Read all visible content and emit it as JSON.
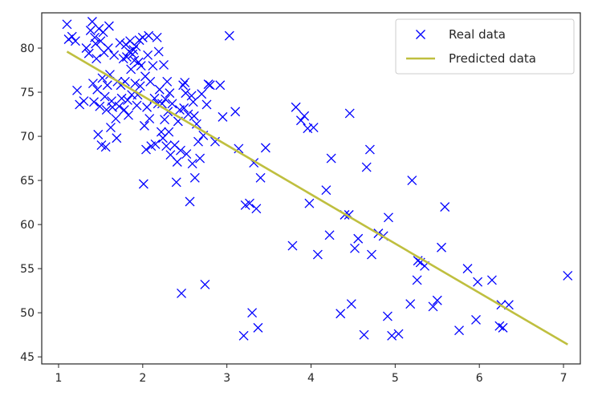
{
  "chart_data": {
    "type": "scatter",
    "title": "",
    "xlabel": "",
    "ylabel": "",
    "xlim": [
      0.8,
      7.2
    ],
    "ylim": [
      44.2,
      84.0
    ],
    "x_ticks": [
      1,
      2,
      3,
      4,
      5,
      6,
      7
    ],
    "y_ticks": [
      45,
      50,
      55,
      60,
      65,
      70,
      75,
      80
    ],
    "grid": false,
    "legend_placement": "top-right",
    "series": [
      {
        "name": "Real data",
        "kind": "scatter",
        "marker": "x",
        "color": "#0000ff",
        "points": [
          [
            1.1,
            82.7
          ],
          [
            1.12,
            81.0
          ],
          [
            1.16,
            81.3
          ],
          [
            1.2,
            80.8
          ],
          [
            1.22,
            75.2
          ],
          [
            1.25,
            73.6
          ],
          [
            1.3,
            74.0
          ],
          [
            1.33,
            80.0
          ],
          [
            1.36,
            79.4
          ],
          [
            1.38,
            82.0
          ],
          [
            1.4,
            83.0
          ],
          [
            1.41,
            76.0
          ],
          [
            1.42,
            73.9
          ],
          [
            1.43,
            81.2
          ],
          [
            1.44,
            80.5
          ],
          [
            1.45,
            78.8
          ],
          [
            1.46,
            75.3
          ],
          [
            1.47,
            70.2
          ],
          [
            1.48,
            82.2
          ],
          [
            1.49,
            73.4
          ],
          [
            1.5,
            80.8
          ],
          [
            1.51,
            69.0
          ],
          [
            1.52,
            76.6
          ],
          [
            1.53,
            81.8
          ],
          [
            1.54,
            79.5
          ],
          [
            1.55,
            74.5
          ],
          [
            1.56,
            68.8
          ],
          [
            1.57,
            73.0
          ],
          [
            1.58,
            75.8
          ],
          [
            1.59,
            80.0
          ],
          [
            1.6,
            82.5
          ],
          [
            1.61,
            77.0
          ],
          [
            1.62,
            71.0
          ],
          [
            1.63,
            74.0
          ],
          [
            1.64,
            73.3
          ],
          [
            1.66,
            79.2
          ],
          [
            1.68,
            72.0
          ],
          [
            1.69,
            69.8
          ],
          [
            1.7,
            76.2
          ],
          [
            1.72,
            73.4
          ],
          [
            1.73,
            80.6
          ],
          [
            1.74,
            75.8
          ],
          [
            1.75,
            74.3
          ],
          [
            1.77,
            78.8
          ],
          [
            1.78,
            73.0
          ],
          [
            1.79,
            76.2
          ],
          [
            1.8,
            80.4
          ],
          [
            1.81,
            79.0
          ],
          [
            1.82,
            74.1
          ],
          [
            1.83,
            72.4
          ],
          [
            1.84,
            79.6
          ],
          [
            1.85,
            80.8
          ],
          [
            1.86,
            77.6
          ],
          [
            1.87,
            74.7
          ],
          [
            1.88,
            79.3
          ],
          [
            1.89,
            79.8
          ],
          [
            1.9,
            78.6
          ],
          [
            1.91,
            76.0
          ],
          [
            1.92,
            80.2
          ],
          [
            1.93,
            73.5
          ],
          [
            1.94,
            74.7
          ],
          [
            1.95,
            78.4
          ],
          [
            1.96,
            80.9
          ],
          [
            1.97,
            75.7
          ],
          [
            1.98,
            78.0
          ],
          [
            2.0,
            81.2
          ],
          [
            2.01,
            64.6
          ],
          [
            2.02,
            71.2
          ],
          [
            2.03,
            76.8
          ],
          [
            2.04,
            68.5
          ],
          [
            2.05,
            73.3
          ],
          [
            2.06,
            79.2
          ],
          [
            2.07,
            81.4
          ],
          [
            2.08,
            72.0
          ],
          [
            2.09,
            76.2
          ],
          [
            2.1,
            68.9
          ],
          [
            2.12,
            78.0
          ],
          [
            2.14,
            74.3
          ],
          [
            2.15,
            69.1
          ],
          [
            2.17,
            81.2
          ],
          [
            2.18,
            73.7
          ],
          [
            2.19,
            79.6
          ],
          [
            2.2,
            75.3
          ],
          [
            2.22,
            70.5
          ],
          [
            2.23,
            73.7
          ],
          [
            2.24,
            69.8
          ],
          [
            2.25,
            78.1
          ],
          [
            2.26,
            71.9
          ],
          [
            2.27,
            74.2
          ],
          [
            2.28,
            68.9
          ],
          [
            2.29,
            76.2
          ],
          [
            2.3,
            72.8
          ],
          [
            2.31,
            70.5
          ],
          [
            2.32,
            74.9
          ],
          [
            2.33,
            67.9
          ],
          [
            2.35,
            73.7
          ],
          [
            2.38,
            69.0
          ],
          [
            2.4,
            64.8
          ],
          [
            2.41,
            67.1
          ],
          [
            2.42,
            71.7
          ],
          [
            2.44,
            73.0
          ],
          [
            2.45,
            68.4
          ],
          [
            2.46,
            52.2
          ],
          [
            2.48,
            75.8
          ],
          [
            2.49,
            73.2
          ],
          [
            2.5,
            76.1
          ],
          [
            2.51,
            74.9
          ],
          [
            2.52,
            68.0
          ],
          [
            2.54,
            72.5
          ],
          [
            2.56,
            62.6
          ],
          [
            2.58,
            74.6
          ],
          [
            2.59,
            66.9
          ],
          [
            2.6,
            73.9
          ],
          [
            2.61,
            72.3
          ],
          [
            2.62,
            65.3
          ],
          [
            2.64,
            71.4
          ],
          [
            2.66,
            69.4
          ],
          [
            2.68,
            67.5
          ],
          [
            2.7,
            74.8
          ],
          [
            2.72,
            70.1
          ],
          [
            2.74,
            53.2
          ],
          [
            2.76,
            73.6
          ],
          [
            2.78,
            75.9
          ],
          [
            2.8,
            75.8
          ],
          [
            2.86,
            69.4
          ],
          [
            2.92,
            75.8
          ],
          [
            2.95,
            72.2
          ],
          [
            3.03,
            81.4
          ],
          [
            3.1,
            72.8
          ],
          [
            3.14,
            68.6
          ],
          [
            3.2,
            47.4
          ],
          [
            3.22,
            62.2
          ],
          [
            3.27,
            62.4
          ],
          [
            3.3,
            50.0
          ],
          [
            3.32,
            67.0
          ],
          [
            3.35,
            61.8
          ],
          [
            3.37,
            48.3
          ],
          [
            3.4,
            65.3
          ],
          [
            3.46,
            68.7
          ],
          [
            3.78,
            57.6
          ],
          [
            3.82,
            73.3
          ],
          [
            3.88,
            71.8
          ],
          [
            3.92,
            72.3
          ],
          [
            3.96,
            70.9
          ],
          [
            3.98,
            62.4
          ],
          [
            4.03,
            71.0
          ],
          [
            4.08,
            56.6
          ],
          [
            4.18,
            63.9
          ],
          [
            4.22,
            58.8
          ],
          [
            4.24,
            67.5
          ],
          [
            4.35,
            49.9
          ],
          [
            4.4,
            61.1
          ],
          [
            4.45,
            61.1
          ],
          [
            4.46,
            72.6
          ],
          [
            4.48,
            51.0
          ],
          [
            4.52,
            57.3
          ],
          [
            4.56,
            58.4
          ],
          [
            4.63,
            47.5
          ],
          [
            4.66,
            66.5
          ],
          [
            4.7,
            68.5
          ],
          [
            4.72,
            56.6
          ],
          [
            4.8,
            59.0
          ],
          [
            4.86,
            58.7
          ],
          [
            4.91,
            49.6
          ],
          [
            4.92,
            60.8
          ],
          [
            4.96,
            47.4
          ],
          [
            5.04,
            47.6
          ],
          [
            5.18,
            51.0
          ],
          [
            5.2,
            65.0
          ],
          [
            5.26,
            53.7
          ],
          [
            5.27,
            55.9
          ],
          [
            5.3,
            55.7
          ],
          [
            5.35,
            55.3
          ],
          [
            5.45,
            50.7
          ],
          [
            5.5,
            51.4
          ],
          [
            5.55,
            57.4
          ],
          [
            5.59,
            62.0
          ],
          [
            5.76,
            48.0
          ],
          [
            5.86,
            55.0
          ],
          [
            5.96,
            49.2
          ],
          [
            5.98,
            53.5
          ],
          [
            6.15,
            53.7
          ],
          [
            6.24,
            48.5
          ],
          [
            6.26,
            50.9
          ],
          [
            6.28,
            48.3
          ],
          [
            6.35,
            50.9
          ],
          [
            7.05,
            54.2
          ]
        ]
      },
      {
        "name": "Predicted data",
        "kind": "line",
        "color": "#bfbf3f",
        "points": [
          [
            1.1,
            79.6
          ],
          [
            7.05,
            46.4
          ]
        ]
      }
    ]
  }
}
